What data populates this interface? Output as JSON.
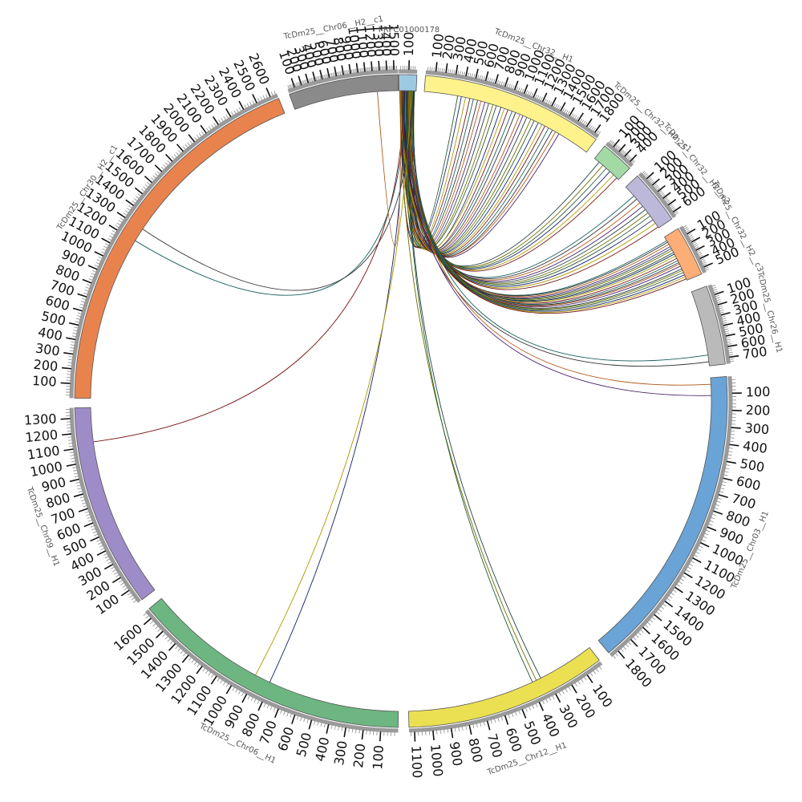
{
  "figure": {
    "type": "circos",
    "background": "#ffffff"
  },
  "segments": [
    {
      "id": "PRFC01000178",
      "label": "PRFC01000178",
      "length": 180,
      "color": "#9ec9e2",
      "ticks": [
        100
      ]
    },
    {
      "id": "TcDm25_Chr32_H1",
      "label": "TcDm25__Chr32__H1",
      "length": 1850,
      "color": "#fdf28c",
      "ticks": [
        100,
        200,
        300,
        400,
        500,
        600,
        700,
        800,
        900,
        1000,
        1100,
        1200,
        1300,
        1400,
        1500,
        1600,
        1700,
        1800
      ]
    },
    {
      "id": "TcDm25_Chr32_H2_c1",
      "label": "TcDm25__Chr32__H2__c1",
      "length": 460,
      "color": "#a3d9a5",
      "ticks": [
        100,
        200,
        300,
        400
      ]
    },
    {
      "id": "TcDm25_Chr32_H2_c2",
      "label": "TcDm25__Chr32__H2__c2",
      "length": 660,
      "color": "#bcb8d9",
      "ticks": [
        100,
        200,
        300,
        400,
        500,
        600
      ]
    },
    {
      "id": "TcDm25_Chr32_H2_c3",
      "label": "TcDm25__Chr32__H2__c3",
      "length": 560,
      "color": "#fcae76",
      "ticks": [
        100,
        200,
        300,
        400,
        500
      ]
    },
    {
      "id": "TcDm25_Chr26_H1",
      "label": "TcDm25__Chr26__H1",
      "length": 760,
      "color": "#bababa",
      "ticks": [
        100,
        200,
        300,
        400,
        500,
        600,
        700
      ]
    },
    {
      "id": "TcDm25_Chr03_H1",
      "label": "TcDm25__Chr03__H1",
      "length": 1850,
      "color": "#6aa3d5",
      "ticks": [
        100,
        200,
        300,
        400,
        500,
        600,
        700,
        800,
        900,
        1000,
        1100,
        1200,
        1300,
        1400,
        1500,
        1600,
        1700,
        1800
      ]
    },
    {
      "id": "TcDm25_Chr12_H1",
      "label": "TcDm25__Chr12__H1",
      "length": 1130,
      "color": "#ebe052",
      "ticks": [
        100,
        200,
        300,
        400,
        500,
        600,
        700,
        800,
        900,
        1000,
        1100
      ]
    },
    {
      "id": "TcDm25_Chr06_H1",
      "label": "TcDm25__Chr06__H1",
      "length": 1650,
      "color": "#6db682",
      "ticks": [
        100,
        200,
        300,
        400,
        500,
        600,
        700,
        800,
        900,
        1000,
        1100,
        1200,
        1300,
        1400,
        1500,
        1600
      ]
    },
    {
      "id": "TcDm25_Chr09_H1",
      "label": "TcDm25__Chr09__H1",
      "length": 1370,
      "color": "#9d8cc7",
      "ticks": [
        100,
        200,
        300,
        400,
        500,
        600,
        700,
        800,
        900,
        1000,
        1100,
        1200,
        1300
      ]
    },
    {
      "id": "TcDm25_Chr30_H2_c1",
      "label": "TcDm25__Chr30__H2__c1",
      "length": 2650,
      "color": "#e8834e",
      "ticks": [
        100,
        200,
        300,
        400,
        500,
        600,
        700,
        800,
        900,
        1000,
        1100,
        1200,
        1300,
        1400,
        1500,
        1600,
        1700,
        1800,
        1900,
        2000,
        2100,
        2200,
        2300,
        2400,
        2500,
        2600
      ]
    },
    {
      "id": "TcDm25_Chr06_H2_c1",
      "label": "TcDm25__Chr06__H2__c1",
      "length": 1560,
      "color": "#8a8a8a",
      "ticks": [
        100,
        200,
        300,
        400,
        500,
        600,
        700,
        800,
        900,
        1000,
        1100,
        1200,
        1300,
        1400,
        1500
      ]
    }
  ],
  "link_colors": [
    "#2d6b3a",
    "#1c2a7a",
    "#c9b400",
    "#8b1a1a",
    "#1f6f6f",
    "#3b3b3b",
    "#d2691e",
    "#5a2d82",
    "#2f4f4f",
    "#808000"
  ]
}
